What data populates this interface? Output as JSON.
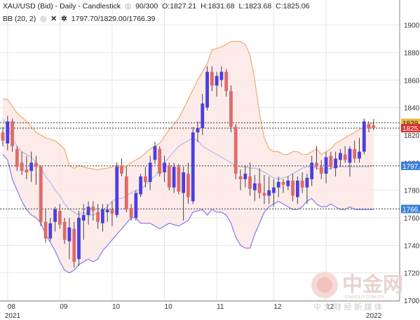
{
  "header": {
    "line1": {
      "symbol": "XAU/USD (Bid) - Daily - Candlestick",
      "eye_icon": "eye-icon",
      "bars": "90/300",
      "open": "O:1827.21",
      "high": "H:1831.68",
      "low": "L:1823.68",
      "close": "C:1825.06"
    },
    "line2": {
      "indicator": "BB (20, 2)",
      "eye_icon": "eye-icon",
      "close_icon": "close-x-icon",
      "settings_icon": "gear-icon",
      "values": "1797.70/1829.00/1766.39"
    }
  },
  "price_tags": [
    {
      "label": "1829.",
      "value": 1829.0,
      "bg": "#f0b84a",
      "fg": "#222222"
    },
    {
      "label": "1825.0",
      "value": 1825.06,
      "bg": "#d93030",
      "fg": "#ffffff"
    },
    {
      "label": "1797.",
      "value": 1797.7,
      "bg": "#3b7fd4",
      "fg": "#ffffff"
    },
    {
      "label": "1766.",
      "value": 1766.39,
      "bg": "#3b7fd4",
      "fg": "#ffffff"
    }
  ],
  "watermark": {
    "logo_text": "中金网",
    "url_text": "CNGOLD.COM.CN",
    "tagline": "中 文 财 经 新 媒 体"
  },
  "colors": {
    "bull": "#4b3fe0",
    "bear": "#e06a6a",
    "upper_band": "#eea560",
    "lower_band": "#7b6ff0",
    "mid_band": "#a7b8e8",
    "band_fill": "#fde8e6",
    "grid": "#e4e4e4",
    "hline": "#333333"
  },
  "chart_data": {
    "type": "candlestick",
    "title": "XAU/USD (Bid) - Daily - Candlestick",
    "ylim": [
      1700,
      1910
    ],
    "y_ticks": [
      1700,
      1720,
      1740,
      1760,
      1780,
      1800,
      1820,
      1840,
      1860,
      1880,
      1900
    ],
    "y_tick_labels": [
      "1700",
      "1720",
      "1740",
      "1760",
      "1780",
      "1800",
      "1820",
      "1840",
      "1860",
      "1880",
      "1900"
    ],
    "x_ticks": [
      {
        "label": "08",
        "bar": 1
      },
      {
        "label": "09",
        "bar": 12
      },
      {
        "label": "10",
        "bar": 23
      },
      {
        "label": "10",
        "bar": 34
      },
      {
        "label": "11",
        "bar": 45
      },
      {
        "label": "12",
        "bar": 57
      },
      {
        "label": "12",
        "bar": 68
      }
    ],
    "year_labels": [
      {
        "label": "2021",
        "bar": 1
      },
      {
        "label": "2022",
        "bar": 77
      }
    ],
    "n_bars": 79,
    "candles": [
      [
        1822,
        1826,
        1812,
        1816
      ],
      [
        1814,
        1834,
        1809,
        1830
      ],
      [
        1830,
        1832,
        1808,
        1812
      ],
      [
        1810,
        1812,
        1794,
        1797
      ],
      [
        1800,
        1808,
        1791,
        1794
      ],
      [
        1795,
        1805,
        1788,
        1793
      ],
      [
        1794,
        1808,
        1786,
        1800
      ],
      [
        1800,
        1805,
        1784,
        1797
      ],
      [
        1797,
        1798,
        1754,
        1757
      ],
      [
        1757,
        1766,
        1742,
        1745
      ],
      [
        1745,
        1760,
        1743,
        1756
      ],
      [
        1757,
        1768,
        1750,
        1766
      ],
      [
        1765,
        1770,
        1752,
        1755
      ],
      [
        1757,
        1760,
        1741,
        1744
      ],
      [
        1743,
        1760,
        1730,
        1753
      ],
      [
        1752,
        1757,
        1724,
        1728
      ],
      [
        1730,
        1765,
        1725,
        1760
      ],
      [
        1758,
        1770,
        1744,
        1762
      ],
      [
        1762,
        1772,
        1755,
        1768
      ],
      [
        1768,
        1772,
        1758,
        1765
      ],
      [
        1764,
        1770,
        1752,
        1757
      ],
      [
        1756,
        1770,
        1750,
        1766
      ],
      [
        1764,
        1770,
        1757,
        1766
      ],
      [
        1766,
        1772,
        1754,
        1763
      ],
      [
        1762,
        1800,
        1760,
        1797
      ],
      [
        1798,
        1803,
        1790,
        1792
      ],
      [
        1790,
        1797,
        1764,
        1766
      ],
      [
        1767,
        1770,
        1758,
        1760
      ],
      [
        1760,
        1780,
        1758,
        1778
      ],
      [
        1777,
        1792,
        1775,
        1790
      ],
      [
        1790,
        1797,
        1782,
        1786
      ],
      [
        1786,
        1805,
        1780,
        1800
      ],
      [
        1802,
        1815,
        1799,
        1812
      ],
      [
        1810,
        1812,
        1790,
        1792
      ],
      [
        1793,
        1805,
        1786,
        1800
      ],
      [
        1798,
        1800,
        1780,
        1782
      ],
      [
        1782,
        1800,
        1778,
        1797
      ],
      [
        1797,
        1799,
        1777,
        1779
      ],
      [
        1778,
        1797,
        1758,
        1793
      ],
      [
        1792,
        1800,
        1770,
        1775
      ],
      [
        1772,
        1826,
        1770,
        1822
      ],
      [
        1822,
        1830,
        1815,
        1825
      ],
      [
        1825,
        1850,
        1820,
        1843
      ],
      [
        1840,
        1870,
        1838,
        1866
      ],
      [
        1866,
        1870,
        1852,
        1856
      ],
      [
        1856,
        1866,
        1848,
        1863
      ],
      [
        1860,
        1870,
        1855,
        1866
      ],
      [
        1866,
        1868,
        1848,
        1852
      ],
      [
        1852,
        1856,
        1822,
        1826
      ],
      [
        1826,
        1828,
        1788,
        1792
      ],
      [
        1790,
        1795,
        1780,
        1788
      ],
      [
        1788,
        1798,
        1782,
        1792
      ],
      [
        1790,
        1800,
        1776,
        1781
      ],
      [
        1780,
        1791,
        1772,
        1785
      ],
      [
        1785,
        1796,
        1774,
        1778
      ],
      [
        1778,
        1791,
        1770,
        1776
      ],
      [
        1776,
        1790,
        1770,
        1780
      ],
      [
        1778,
        1788,
        1768,
        1782
      ],
      [
        1782,
        1790,
        1775,
        1786
      ],
      [
        1786,
        1788,
        1778,
        1784
      ],
      [
        1783,
        1790,
        1780,
        1787
      ],
      [
        1787,
        1792,
        1772,
        1776
      ],
      [
        1775,
        1790,
        1770,
        1787
      ],
      [
        1787,
        1793,
        1778,
        1782
      ],
      [
        1782,
        1792,
        1770,
        1789
      ],
      [
        1788,
        1805,
        1783,
        1800
      ],
      [
        1800,
        1812,
        1795,
        1797
      ],
      [
        1797,
        1802,
        1788,
        1792
      ],
      [
        1792,
        1808,
        1785,
        1804
      ],
      [
        1805,
        1808,
        1795,
        1797
      ],
      [
        1796,
        1808,
        1790,
        1803
      ],
      [
        1802,
        1810,
        1797,
        1807
      ],
      [
        1806,
        1812,
        1800,
        1802
      ],
      [
        1800,
        1812,
        1790,
        1810
      ],
      [
        1810,
        1816,
        1800,
        1803
      ],
      [
        1803,
        1818,
        1800,
        1808
      ],
      [
        1808,
        1832,
        1806,
        1830
      ],
      [
        1828,
        1830,
        1822,
        1825
      ],
      [
        1827.21,
        1831.68,
        1823.68,
        1825.06
      ]
    ],
    "bb_upper": [
      [
        0,
        1846
      ],
      [
        1,
        1846
      ],
      [
        3,
        1836
      ],
      [
        5,
        1830
      ],
      [
        7,
        1822
      ],
      [
        9,
        1818
      ],
      [
        11,
        1816
      ],
      [
        13,
        1810
      ],
      [
        14,
        1798
      ],
      [
        15,
        1796
      ],
      [
        16,
        1798
      ],
      [
        18,
        1796
      ],
      [
        20,
        1795
      ],
      [
        22,
        1796
      ],
      [
        24,
        1798
      ],
      [
        25,
        1795
      ],
      [
        27,
        1800
      ],
      [
        29,
        1804
      ],
      [
        31,
        1810
      ],
      [
        33,
        1814
      ],
      [
        35,
        1824
      ],
      [
        37,
        1832
      ],
      [
        39,
        1846
      ],
      [
        41,
        1860
      ],
      [
        43,
        1872
      ],
      [
        44,
        1882
      ],
      [
        46,
        1884
      ],
      [
        48,
        1888
      ],
      [
        50,
        1888
      ],
      [
        51,
        1886
      ],
      [
        52,
        1878
      ],
      [
        53,
        1860
      ],
      [
        54,
        1836
      ],
      [
        55,
        1818
      ],
      [
        56,
        1810
      ],
      [
        57,
        1808
      ],
      [
        58,
        1808
      ],
      [
        59,
        1806
      ],
      [
        60,
        1806
      ],
      [
        61,
        1808
      ],
      [
        62,
        1808
      ],
      [
        63,
        1806
      ],
      [
        64,
        1806
      ],
      [
        65,
        1808
      ],
      [
        66,
        1810
      ],
      [
        67,
        1806
      ],
      [
        68,
        1808
      ],
      [
        69,
        1810
      ],
      [
        70,
        1814
      ],
      [
        72,
        1818
      ],
      [
        74,
        1822
      ],
      [
        76,
        1826
      ],
      [
        78,
        1829
      ]
    ],
    "bb_lower": [
      [
        0,
        1806
      ],
      [
        1,
        1802
      ],
      [
        2,
        1788
      ],
      [
        3,
        1780
      ],
      [
        4,
        1772
      ],
      [
        5,
        1766
      ],
      [
        6,
        1762
      ],
      [
        7,
        1760
      ],
      [
        8,
        1756
      ],
      [
        9,
        1748
      ],
      [
        10,
        1742
      ],
      [
        11,
        1736
      ],
      [
        12,
        1728
      ],
      [
        13,
        1722
      ],
      [
        14,
        1720
      ],
      [
        15,
        1722
      ],
      [
        16,
        1726
      ],
      [
        17,
        1728
      ],
      [
        18,
        1730
      ],
      [
        19,
        1728
      ],
      [
        20,
        1730
      ],
      [
        21,
        1736
      ],
      [
        22,
        1740
      ],
      [
        23,
        1744
      ],
      [
        24,
        1748
      ],
      [
        25,
        1752
      ],
      [
        26,
        1756
      ],
      [
        27,
        1760
      ],
      [
        28,
        1760
      ],
      [
        29,
        1756
      ],
      [
        31,
        1756
      ],
      [
        33,
        1752
      ],
      [
        35,
        1756
      ],
      [
        37,
        1754
      ],
      [
        39,
        1758
      ],
      [
        40,
        1764
      ],
      [
        42,
        1766
      ],
      [
        43,
        1762
      ],
      [
        44,
        1766
      ],
      [
        45,
        1764
      ],
      [
        46,
        1764
      ],
      [
        47,
        1762
      ],
      [
        48,
        1756
      ],
      [
        49,
        1746
      ],
      [
        50,
        1740
      ],
      [
        51,
        1738
      ],
      [
        52,
        1738
      ],
      [
        53,
        1748
      ],
      [
        54,
        1756
      ],
      [
        55,
        1764
      ],
      [
        56,
        1768
      ],
      [
        57,
        1770
      ],
      [
        58,
        1772
      ],
      [
        59,
        1770
      ],
      [
        60,
        1768
      ],
      [
        61,
        1766
      ],
      [
        62,
        1766
      ],
      [
        63,
        1768
      ],
      [
        64,
        1772
      ],
      [
        65,
        1774
      ],
      [
        66,
        1770
      ],
      [
        67,
        1768
      ],
      [
        68,
        1768
      ],
      [
        69,
        1770
      ],
      [
        70,
        1768
      ],
      [
        71,
        1766
      ],
      [
        72,
        1766
      ],
      [
        73,
        1768
      ],
      [
        74,
        1766
      ],
      [
        75,
        1766
      ],
      [
        76,
        1766
      ],
      [
        77,
        1766
      ],
      [
        78,
        1766
      ]
    ],
    "bb_mid": [
      [
        0,
        1832
      ],
      [
        1,
        1826
      ],
      [
        2,
        1818
      ],
      [
        3,
        1812
      ],
      [
        4,
        1808
      ],
      [
        5,
        1806
      ],
      [
        6,
        1804
      ],
      [
        7,
        1800
      ],
      [
        8,
        1796
      ],
      [
        9,
        1790
      ],
      [
        10,
        1786
      ],
      [
        11,
        1780
      ],
      [
        12,
        1776
      ],
      [
        13,
        1770
      ],
      [
        14,
        1766
      ],
      [
        15,
        1764
      ],
      [
        16,
        1762
      ],
      [
        17,
        1764
      ],
      [
        18,
        1762
      ],
      [
        19,
        1762
      ],
      [
        20,
        1764
      ],
      [
        21,
        1766
      ],
      [
        22,
        1768
      ],
      [
        23,
        1772
      ],
      [
        24,
        1774
      ],
      [
        25,
        1774
      ],
      [
        26,
        1776
      ],
      [
        27,
        1778
      ],
      [
        28,
        1780
      ],
      [
        29,
        1780
      ],
      [
        30,
        1784
      ],
      [
        31,
        1788
      ],
      [
        32,
        1790
      ],
      [
        33,
        1796
      ],
      [
        34,
        1800
      ],
      [
        35,
        1804
      ],
      [
        36,
        1808
      ],
      [
        37,
        1812
      ],
      [
        38,
        1814
      ],
      [
        39,
        1816
      ],
      [
        40,
        1818
      ],
      [
        41,
        1816
      ],
      [
        42,
        1812
      ],
      [
        43,
        1810
      ],
      [
        44,
        1808
      ],
      [
        45,
        1806
      ],
      [
        46,
        1804
      ],
      [
        47,
        1802
      ],
      [
        48,
        1800
      ],
      [
        49,
        1798
      ],
      [
        50,
        1797
      ],
      [
        51,
        1797
      ],
      [
        52,
        1796
      ],
      [
        53,
        1796
      ],
      [
        54,
        1795
      ],
      [
        55,
        1793
      ],
      [
        56,
        1791
      ],
      [
        57,
        1789
      ],
      [
        58,
        1788
      ],
      [
        59,
        1789
      ],
      [
        60,
        1790
      ],
      [
        61,
        1792
      ],
      [
        62,
        1794
      ],
      [
        63,
        1796
      ],
      [
        64,
        1797
      ],
      [
        65,
        1797
      ],
      [
        66,
        1796
      ],
      [
        67,
        1795
      ],
      [
        68,
        1795
      ],
      [
        69,
        1796
      ],
      [
        70,
        1797
      ],
      [
        71,
        1797
      ],
      [
        72,
        1797
      ],
      [
        73,
        1797
      ],
      [
        74,
        1797
      ],
      [
        75,
        1797
      ],
      [
        76,
        1797
      ],
      [
        77,
        1797
      ],
      [
        78,
        1798
      ]
    ],
    "horizontal_lines": [
      1829.0,
      1825.06,
      1797.7,
      1766.39
    ]
  }
}
